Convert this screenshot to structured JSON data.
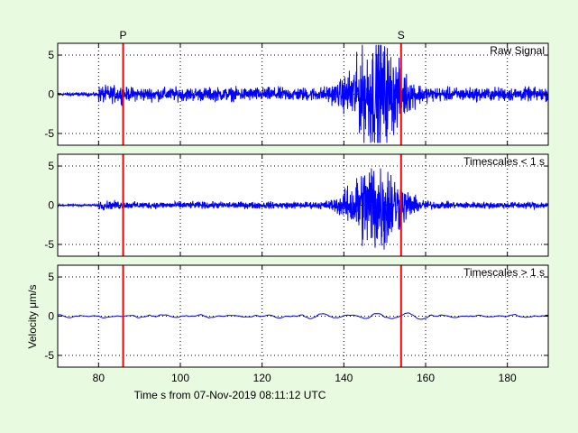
{
  "chart_data": {
    "type": "line",
    "xlabel": "Time s from 07-Nov-2019 08:11:12 UTC",
    "ylabel": "Velocity μm/s",
    "xlim": [
      70,
      190
    ],
    "x_ticks": [
      80,
      100,
      120,
      140,
      160,
      180
    ],
    "grid": true,
    "phase_picks": [
      {
        "label": "P",
        "time": 86.0
      },
      {
        "label": "S",
        "time": 154.0
      }
    ],
    "panels": [
      {
        "title": "Raw Signal",
        "ylim": [
          -6.5,
          6.5
        ],
        "y_ticks": [
          5,
          0,
          -5
        ],
        "noise_amp": 0.9,
        "event_amp": 5.8,
        "smooth": false
      },
      {
        "title": "Timescales < 1 s",
        "ylim": [
          -6.5,
          6.5
        ],
        "y_ticks": [
          5,
          0,
          -5
        ],
        "noise_amp": 0.45,
        "event_amp": 5.5,
        "smooth": false
      },
      {
        "title": "Timescales > 1 s",
        "ylim": [
          -6.5,
          6.5
        ],
        "y_ticks": [
          5,
          0,
          -5
        ],
        "noise_amp": 0.25,
        "event_amp": 0.5,
        "smooth": true
      }
    ],
    "colors": {
      "trace": "#0000ff",
      "pick": "#ff0000",
      "axes_bg": "#ffffff",
      "figure_bg": "#e8fae0"
    }
  }
}
